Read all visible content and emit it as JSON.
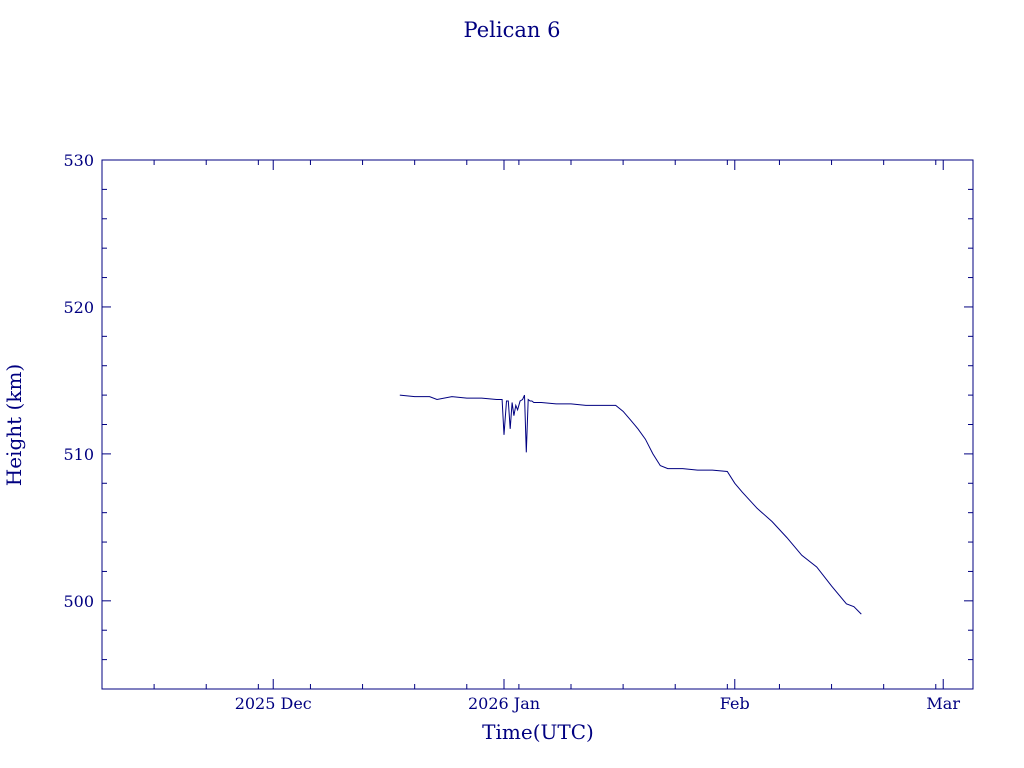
{
  "chart_data": {
    "type": "line",
    "title": "Pelican 6",
    "xlabel": "Time(UTC)",
    "ylabel": "Height (km)",
    "color": "#000080",
    "grid": false,
    "ylim": [
      494,
      530
    ],
    "xlim": [
      "2025-11-08",
      "2026-03-05"
    ],
    "y_ticks": [
      {
        "label": "500",
        "value": 500
      },
      {
        "label": "510",
        "value": 510
      },
      {
        "label": "520",
        "value": 520
      },
      {
        "label": "530",
        "value": 530
      }
    ],
    "x_ticks": [
      {
        "label": "2025 Dec",
        "value": "2025-12-01"
      },
      {
        "label": "2026 Jan",
        "value": "2026-01-01"
      },
      {
        "label": "Feb",
        "value": "2026-02-01"
      },
      {
        "label": "Mar",
        "value": "2026-03-01"
      }
    ],
    "series": [
      {
        "x": [
          "2025-12-18",
          "2025-12-20",
          "2025-12-22",
          "2025-12-23",
          "2025-12-25",
          "2025-12-27",
          "2025-12-29",
          "2025-12-31",
          "2025-12-31T18:00",
          "2026-01-01T00:00",
          "2026-01-01T08:00",
          "2026-01-01T14:00",
          "2026-01-01T20:00",
          "2026-01-02T02:00",
          "2026-01-02T08:00",
          "2026-01-02T14:00",
          "2026-01-02T20:00",
          "2026-01-03T04:00",
          "2026-01-03T12:00",
          "2026-01-03T18:00",
          "2026-01-04T00:00",
          "2026-01-04T06:00",
          "2026-01-04T12:00",
          "2026-01-04T18:00",
          "2026-01-05T00:00",
          "2026-01-05T12:00",
          "2026-01-06",
          "2026-01-08",
          "2026-01-10",
          "2026-01-12",
          "2026-01-14",
          "2026-01-16",
          "2026-01-17",
          "2026-01-18",
          "2026-01-19",
          "2026-01-20",
          "2026-01-21",
          "2026-01-22",
          "2026-01-23",
          "2026-01-24",
          "2026-01-25",
          "2026-01-27",
          "2026-01-29",
          "2026-01-31",
          "2026-02-01",
          "2026-02-02",
          "2026-02-04",
          "2026-02-06",
          "2026-02-08",
          "2026-02-10",
          "2026-02-12",
          "2026-02-14",
          "2026-02-16",
          "2026-02-17",
          "2026-02-18"
        ],
        "y": [
          514.0,
          513.9,
          513.9,
          513.7,
          513.9,
          513.8,
          513.8,
          513.7,
          513.7,
          511.3,
          513.6,
          513.6,
          511.7,
          513.5,
          512.6,
          513.3,
          513.0,
          513.6,
          513.7,
          514.0,
          510.1,
          513.7,
          513.6,
          513.6,
          513.5,
          513.5,
          513.5,
          513.4,
          513.4,
          513.3,
          513.3,
          513.3,
          512.9,
          512.3,
          511.7,
          511.0,
          510.0,
          509.2,
          509.0,
          509.0,
          509.0,
          508.9,
          508.9,
          508.8,
          508.0,
          507.4,
          506.3,
          505.4,
          504.3,
          503.1,
          502.3,
          501.0,
          499.8,
          499.6,
          499.1
        ]
      }
    ]
  }
}
